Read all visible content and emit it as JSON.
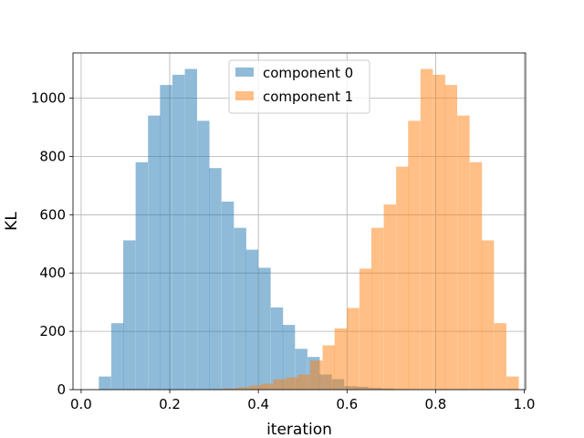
{
  "chart_data": {
    "type": "bar",
    "title": "",
    "xlabel": "iteration",
    "ylabel": "KL",
    "xlim": [
      -0.0,
      1.0
    ],
    "ylim": [
      0,
      1150
    ],
    "xticks": [
      "0.0",
      "0.2",
      "0.4",
      "0.6",
      "0.8",
      "1.0"
    ],
    "yticks": [
      "0",
      "200",
      "400",
      "600",
      "800",
      "1000"
    ],
    "grid": true,
    "legend_position": "top-center",
    "bin_width": 0.0277,
    "series": [
      {
        "name": "component 0",
        "color": "#1f77b4",
        "alpha": 0.5,
        "bins": [
          {
            "x0": 0.04,
            "count": 45
          },
          {
            "x0": 0.068,
            "count": 228
          },
          {
            "x0": 0.095,
            "count": 512
          },
          {
            "x0": 0.123,
            "count": 780
          },
          {
            "x0": 0.151,
            "count": 940
          },
          {
            "x0": 0.178,
            "count": 1045
          },
          {
            "x0": 0.206,
            "count": 1080
          },
          {
            "x0": 0.234,
            "count": 1100
          },
          {
            "x0": 0.262,
            "count": 922
          },
          {
            "x0": 0.289,
            "count": 760
          },
          {
            "x0": 0.317,
            "count": 645
          },
          {
            "x0": 0.345,
            "count": 555
          },
          {
            "x0": 0.372,
            "count": 480
          },
          {
            "x0": 0.4,
            "count": 418
          },
          {
            "x0": 0.428,
            "count": 282
          },
          {
            "x0": 0.455,
            "count": 222
          },
          {
            "x0": 0.483,
            "count": 140
          },
          {
            "x0": 0.511,
            "count": 112
          },
          {
            "x0": 0.538,
            "count": 52
          },
          {
            "x0": 0.566,
            "count": 36
          },
          {
            "x0": 0.594,
            "count": 12
          },
          {
            "x0": 0.621,
            "count": 10
          },
          {
            "x0": 0.649,
            "count": 6
          },
          {
            "x0": 0.677,
            "count": 4
          },
          {
            "x0": 0.704,
            "count": 2
          }
        ]
      },
      {
        "name": "component 1",
        "color": "#ff7f0e",
        "alpha": 0.5,
        "bins": [
          {
            "x0": 0.296,
            "count": 2
          },
          {
            "x0": 0.323,
            "count": 4
          },
          {
            "x0": 0.351,
            "count": 8
          },
          {
            "x0": 0.379,
            "count": 14
          },
          {
            "x0": 0.406,
            "count": 20
          },
          {
            "x0": 0.434,
            "count": 35
          },
          {
            "x0": 0.462,
            "count": 42
          },
          {
            "x0": 0.489,
            "count": 52
          },
          {
            "x0": 0.517,
            "count": 100
          },
          {
            "x0": 0.545,
            "count": 152
          },
          {
            "x0": 0.572,
            "count": 210
          },
          {
            "x0": 0.6,
            "count": 280
          },
          {
            "x0": 0.628,
            "count": 415
          },
          {
            "x0": 0.655,
            "count": 555
          },
          {
            "x0": 0.683,
            "count": 635
          },
          {
            "x0": 0.711,
            "count": 765
          },
          {
            "x0": 0.738,
            "count": 922
          },
          {
            "x0": 0.766,
            "count": 1100
          },
          {
            "x0": 0.794,
            "count": 1080
          },
          {
            "x0": 0.821,
            "count": 1045
          },
          {
            "x0": 0.849,
            "count": 940
          },
          {
            "x0": 0.877,
            "count": 780
          },
          {
            "x0": 0.904,
            "count": 512
          },
          {
            "x0": 0.932,
            "count": 228
          },
          {
            "x0": 0.96,
            "count": 45
          }
        ]
      }
    ]
  }
}
